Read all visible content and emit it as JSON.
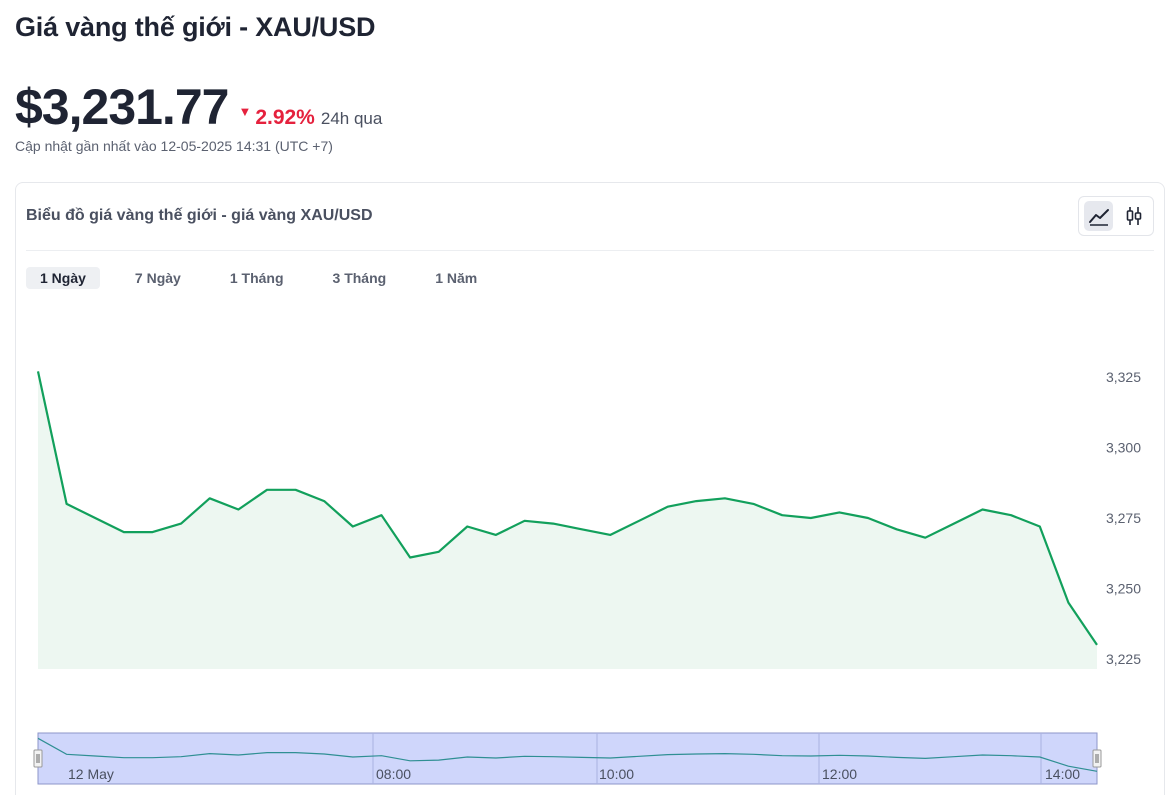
{
  "header": {
    "title": "Giá vàng thế giới - XAU/USD",
    "price": "$3,231.77",
    "change_pct": "2.92%",
    "change_period": "24h qua",
    "updated": "Cập nhật gần nhất vào 12-05-2025 14:31 (UTC +7)"
  },
  "card": {
    "title": "Biểu đồ giá vàng thế giới - giá vàng XAU/USD",
    "line_icon": "line-chart-icon",
    "candle_icon": "candlestick-icon"
  },
  "ranges": [
    {
      "label": "1 Ngày",
      "active": true
    },
    {
      "label": "7 Ngày",
      "active": false
    },
    {
      "label": "1 Tháng",
      "active": false
    },
    {
      "label": "3 Tháng",
      "active": false
    },
    {
      "label": "1 Năm",
      "active": false
    }
  ],
  "colors": {
    "line": "#12a05c",
    "area": "#edf7f1",
    "down": "#e5213d",
    "navigator": "#cfd6fb",
    "navigator_line": "#2f8f93"
  },
  "chart_data": {
    "type": "area",
    "ylim": [
      3221,
      3329
    ],
    "yticks": [
      3225,
      3250,
      3275,
      3300,
      3325
    ],
    "ytick_labels": [
      "3,225",
      "3,250",
      "3,275",
      "3,300",
      "3,325"
    ],
    "x_hours": [
      5.9,
      6.15,
      6.4,
      6.65,
      6.9,
      7.15,
      7.4,
      7.65,
      7.9,
      8.15,
      8.4,
      8.65,
      8.9,
      9.15,
      9.4,
      9.65,
      9.9,
      10.15,
      10.4,
      10.65,
      10.9,
      11.15,
      11.4,
      11.65,
      11.9,
      12.15,
      12.4,
      12.65,
      12.9,
      13.15,
      13.4,
      13.65,
      13.9,
      14.15,
      14.4,
      14.5
    ],
    "values": [
      3327,
      3280,
      3275,
      3270,
      3270,
      3273,
      3282,
      3278,
      3285,
      3285,
      3281,
      3272,
      3276,
      3261,
      3263,
      3272,
      3269,
      3274,
      3273,
      3271,
      3269,
      3274,
      3279,
      3281,
      3282,
      3280,
      3276,
      3275,
      3277,
      3275,
      3271,
      3268,
      3273,
      3278,
      3276,
      3272
    ],
    "x_tail_values": [
      3276,
      3245,
      3230
    ],
    "navigator_labels": [
      "12 May",
      "08:00",
      "10:00",
      "12:00",
      "14:00"
    ]
  }
}
